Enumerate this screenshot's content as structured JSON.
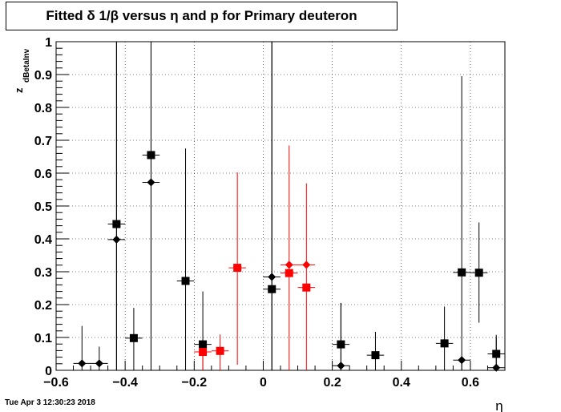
{
  "chart_data": {
    "type": "scatter",
    "title": "Fitted δ 1/β versus η and p for Primary deuteron",
    "xlabel": "η",
    "ylabel": "z",
    "ylabel_sub": "dBetaInv",
    "xlim": [
      -0.6,
      0.7
    ],
    "ylim": [
      0,
      1.0
    ],
    "xticks": [
      "−0.6",
      "−0.4",
      "−0.2",
      "0",
      "0.2",
      "0.4",
      "0.6"
    ],
    "yticks": [
      "0",
      "0.1",
      "0.2",
      "0.3",
      "0.4",
      "0.5",
      "0.6",
      "0.7",
      "0.8",
      "0.9",
      "1"
    ],
    "grid": true,
    "series": [
      {
        "marker": "square",
        "color": "#000000",
        "points": [
          {
            "x": -0.425,
            "y": 0.445,
            "yerr_low": 0.445,
            "yerr_high": 0.555
          },
          {
            "x": -0.375,
            "y": 0.098,
            "yerr_low": 0.098,
            "yerr_high": 0.092
          },
          {
            "x": -0.325,
            "y": 0.655,
            "yerr_low": 0.655,
            "yerr_high": 0.345
          },
          {
            "x": -0.225,
            "y": 0.272,
            "yerr_low": 0.272,
            "yerr_high": 0.403
          },
          {
            "x": -0.175,
            "y": 0.079,
            "yerr_low": 0.079,
            "yerr_high": 0.161
          },
          {
            "x": 0.025,
            "y": 0.247,
            "yerr_low": 0.247,
            "yerr_high": 0.753
          },
          {
            "x": 0.225,
            "y": 0.079,
            "yerr_low": 0.079,
            "yerr_high": 0.126
          },
          {
            "x": 0.325,
            "y": 0.046,
            "yerr_low": 0.046,
            "yerr_high": 0.071
          },
          {
            "x": 0.525,
            "y": 0.082,
            "yerr_low": 0.082,
            "yerr_high": 0.112
          },
          {
            "x": 0.575,
            "y": 0.298,
            "yerr_low": 0.298,
            "yerr_high": 0.597
          },
          {
            "x": 0.625,
            "y": 0.297,
            "yerr_low": 0.152,
            "yerr_high": 0.153
          },
          {
            "x": 0.675,
            "y": 0.05,
            "yerr_low": 0.05,
            "yerr_high": 0.05
          }
        ]
      },
      {
        "marker": "diamond",
        "color": "#000000",
        "points": [
          {
            "x": -0.525,
            "y": 0.021,
            "yerr_low": 0.021,
            "yerr_high": 0.114
          },
          {
            "x": -0.475,
            "y": 0.021,
            "yerr_low": 0.021,
            "yerr_high": 0.051
          },
          {
            "x": -0.425,
            "y": 0.398,
            "yerr_low": 0.398,
            "yerr_high": 0.602
          },
          {
            "x": -0.325,
            "y": 0.572,
            "yerr_low": 0.572,
            "yerr_high": 0.428
          },
          {
            "x": 0.025,
            "y": 0.284,
            "yerr_low": 0.284,
            "yerr_high": 0.716
          },
          {
            "x": 0.225,
            "y": 0.014,
            "yerr_low": 0.014,
            "yerr_high": 0.191
          },
          {
            "x": 0.575,
            "y": 0.031,
            "yerr_low": 0.031,
            "yerr_high": 0.0
          },
          {
            "x": 0.675,
            "y": 0.008,
            "yerr_low": 0.008,
            "yerr_high": 0.1
          }
        ]
      },
      {
        "marker": "square",
        "color": "#ff0000",
        "points": [
          {
            "x": -0.175,
            "y": 0.056,
            "yerr_low": 0.056,
            "yerr_high": 0.0
          },
          {
            "x": -0.125,
            "y": 0.059,
            "yerr_low": 0.059,
            "yerr_high": 0.05
          },
          {
            "x": -0.075,
            "y": 0.312,
            "yerr_low": 0.295,
            "yerr_high": 0.29
          },
          {
            "x": 0.075,
            "y": 0.296,
            "yerr_low": 0.296,
            "yerr_high": 0.388
          },
          {
            "x": 0.125,
            "y": 0.252,
            "yerr_low": 0.252,
            "yerr_high": 0.317
          }
        ]
      },
      {
        "marker": "diamond",
        "color": "#ff0000",
        "points": [
          {
            "x": 0.075,
            "y": 0.321,
            "yerr_low": 0.0,
            "yerr_high": 0.0
          },
          {
            "x": 0.125,
            "y": 0.321,
            "yerr_low": 0.0,
            "yerr_high": 0.0
          }
        ]
      }
    ],
    "xerr": 0.025
  },
  "timestamp": "Tue Apr  3 12:30:23 2018"
}
